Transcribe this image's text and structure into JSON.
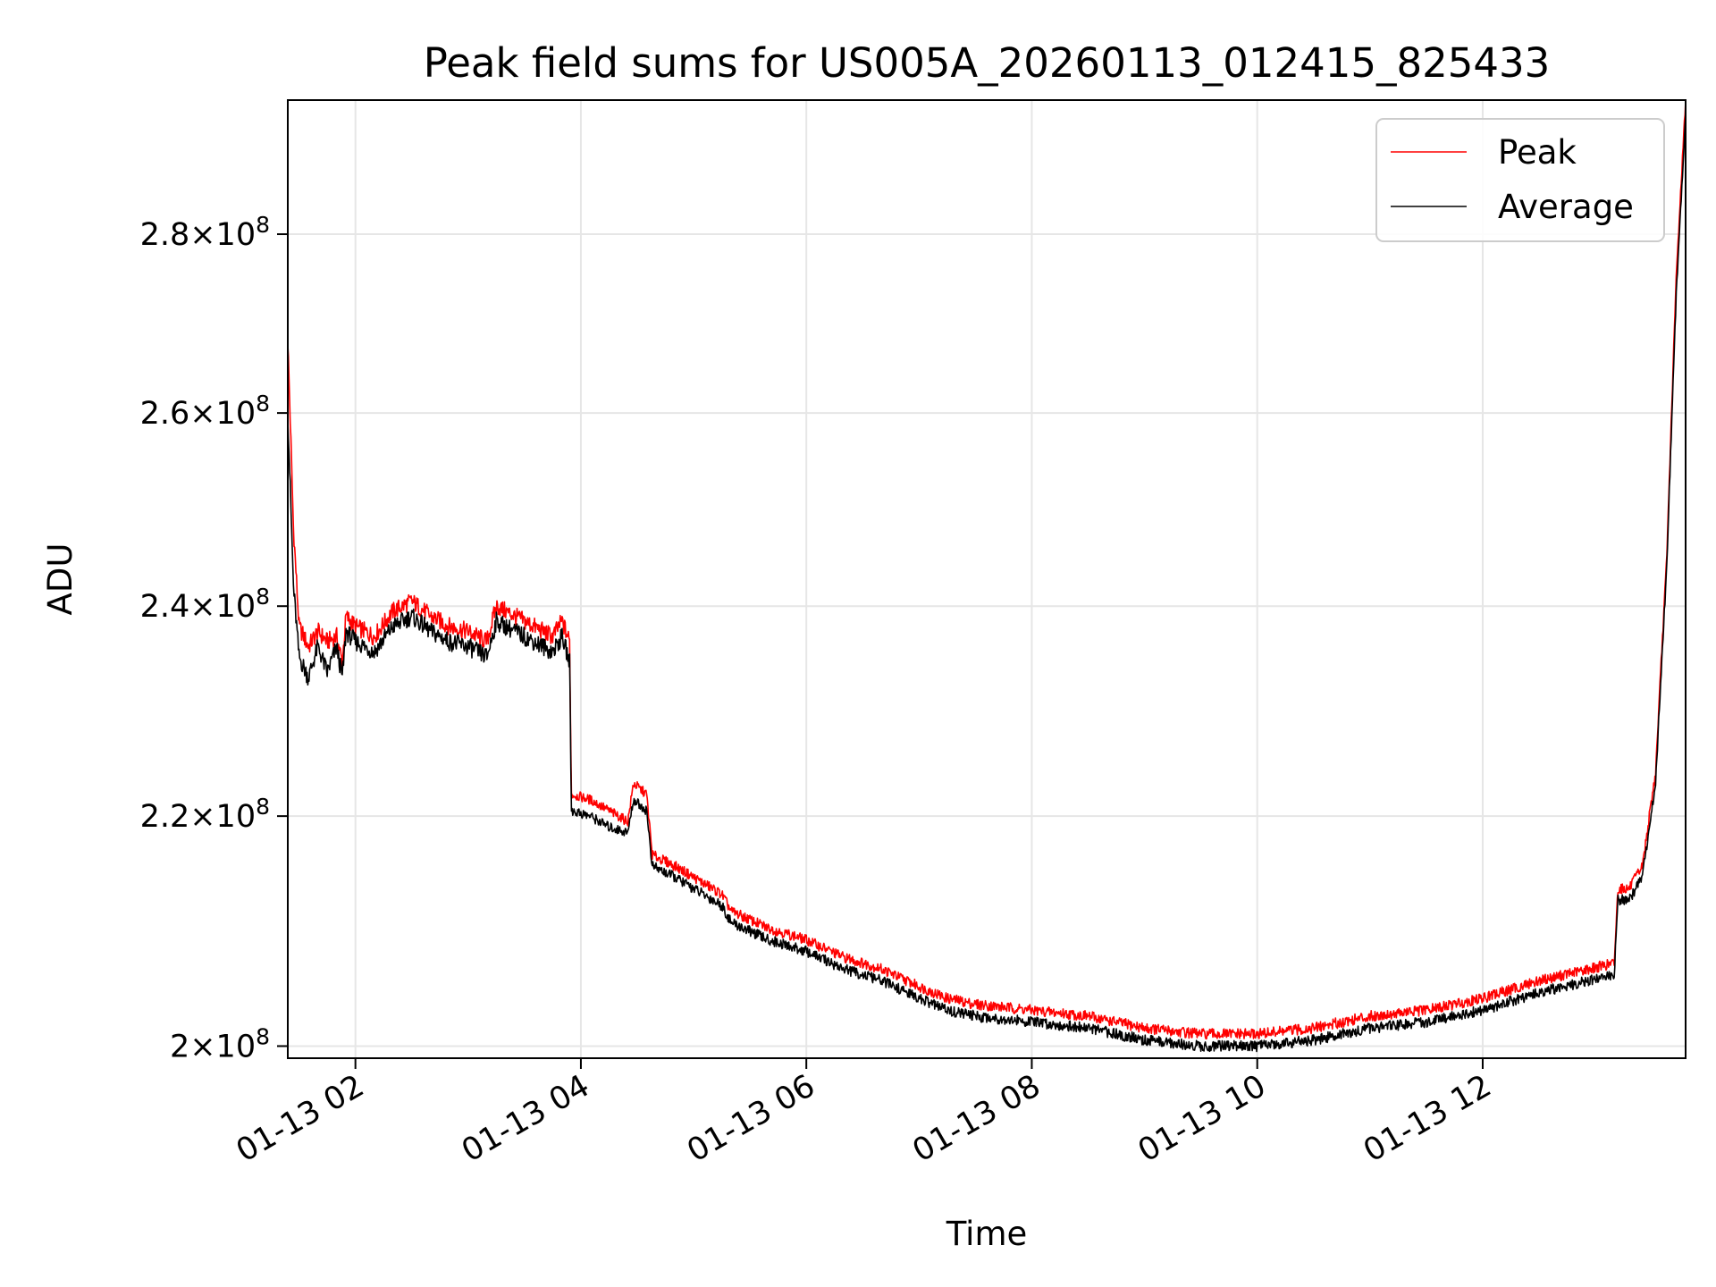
{
  "chart_data": {
    "type": "line",
    "title": "Peak field sums for US005A_20260113_012415_825433",
    "xlabel": "Time",
    "ylabel": "ADU",
    "x_ticks": [
      "01-13 02",
      "01-13 04",
      "01-13 06",
      "01-13 08",
      "01-13 10",
      "01-13 12"
    ],
    "y_ticks": [
      {
        "value": 200000000,
        "mantissa": "2",
        "exponent": "8"
      },
      {
        "value": 220000000,
        "mantissa": "2.2",
        "exponent": "8"
      },
      {
        "value": 240000000,
        "mantissa": "2.4",
        "exponent": "8"
      },
      {
        "value": 260000000,
        "mantissa": "2.6",
        "exponent": "8"
      },
      {
        "value": 280000000,
        "mantissa": "2.8",
        "exponent": "8"
      }
    ],
    "x_range": [
      "2026-01-13 01:24",
      "2026-01-13 13:48"
    ],
    "y_range": [
      199000000,
      296000000
    ],
    "y_scale": "log",
    "grid": true,
    "legend_position": "top-right",
    "series": [
      {
        "name": "Peak",
        "color": "#ff0000",
        "points": [
          [
            "2026-01-13 01:24",
            268000000
          ],
          [
            "2026-01-13 01:27",
            248000000
          ],
          [
            "2026-01-13 01:30",
            238000000
          ],
          [
            "2026-01-13 01:35",
            236000000
          ],
          [
            "2026-01-13 01:40",
            237500000
          ],
          [
            "2026-01-13 01:45",
            236500000
          ],
          [
            "2026-01-13 01:50",
            237000000
          ],
          [
            "2026-01-13 01:53",
            234500000
          ],
          [
            "2026-01-13 01:55",
            239000000
          ],
          [
            "2026-01-13 02:00",
            238000000
          ],
          [
            "2026-01-13 02:10",
            237000000
          ],
          [
            "2026-01-13 02:20",
            239500000
          ],
          [
            "2026-01-13 02:30",
            240500000
          ],
          [
            "2026-01-13 02:40",
            239000000
          ],
          [
            "2026-01-13 02:50",
            238000000
          ],
          [
            "2026-01-13 03:00",
            237500000
          ],
          [
            "2026-01-13 03:10",
            236500000
          ],
          [
            "2026-01-13 03:15",
            240000000
          ],
          [
            "2026-01-13 03:25",
            239000000
          ],
          [
            "2026-01-13 03:35",
            238000000
          ],
          [
            "2026-01-13 03:45",
            237000000
          ],
          [
            "2026-01-13 03:50",
            238500000
          ],
          [
            "2026-01-13 03:54",
            236500000
          ],
          [
            "2026-01-13 03:55",
            222000000
          ],
          [
            "2026-01-13 04:05",
            221500000
          ],
          [
            "2026-01-13 04:15",
            220500000
          ],
          [
            "2026-01-13 04:25",
            219500000
          ],
          [
            "2026-01-13 04:28",
            223000000
          ],
          [
            "2026-01-13 04:35",
            222000000
          ],
          [
            "2026-01-13 04:38",
            216500000
          ],
          [
            "2026-01-13 04:50",
            215500000
          ],
          [
            "2026-01-13 05:00",
            214500000
          ],
          [
            "2026-01-13 05:15",
            213000000
          ],
          [
            "2026-01-13 05:20",
            211500000
          ],
          [
            "2026-01-13 05:40",
            210000000
          ],
          [
            "2026-01-13 06:00",
            209000000
          ],
          [
            "2026-01-13 06:20",
            207500000
          ],
          [
            "2026-01-13 06:40",
            206500000
          ],
          [
            "2026-01-13 07:00",
            205000000
          ],
          [
            "2026-01-13 07:15",
            204000000
          ],
          [
            "2026-01-13 07:30",
            203500000
          ],
          [
            "2026-01-13 08:00",
            203000000
          ],
          [
            "2026-01-13 08:30",
            202500000
          ],
          [
            "2026-01-13 09:00",
            201500000
          ],
          [
            "2026-01-13 09:30",
            201000000
          ],
          [
            "2026-01-13 10:00",
            201000000
          ],
          [
            "2026-01-13 10:30",
            201500000
          ],
          [
            "2026-01-13 11:00",
            202500000
          ],
          [
            "2026-01-13 11:30",
            203000000
          ],
          [
            "2026-01-13 12:00",
            204000000
          ],
          [
            "2026-01-13 12:30",
            205500000
          ],
          [
            "2026-01-13 13:10",
            207000000
          ],
          [
            "2026-01-13 13:12",
            213500000
          ],
          [
            "2026-01-13 13:18",
            213500000
          ],
          [
            "2026-01-13 13:25",
            215500000
          ],
          [
            "2026-01-13 13:32",
            224000000
          ],
          [
            "2026-01-13 13:38",
            245000000
          ],
          [
            "2026-01-13 13:43",
            275000000
          ],
          [
            "2026-01-13 13:48",
            296000000
          ]
        ]
      },
      {
        "name": "Average",
        "color": "#000000",
        "points": [
          [
            "2026-01-13 01:24",
            260000000
          ],
          [
            "2026-01-13 01:27",
            242000000
          ],
          [
            "2026-01-13 01:30",
            235000000
          ],
          [
            "2026-01-13 01:35",
            233000000
          ],
          [
            "2026-01-13 01:40",
            236000000
          ],
          [
            "2026-01-13 01:45",
            233500000
          ],
          [
            "2026-01-13 01:50",
            236000000
          ],
          [
            "2026-01-13 01:53",
            233000000
          ],
          [
            "2026-01-13 01:55",
            237500000
          ],
          [
            "2026-01-13 02:00",
            236500000
          ],
          [
            "2026-01-13 02:10",
            235500000
          ],
          [
            "2026-01-13 02:20",
            238000000
          ],
          [
            "2026-01-13 02:30",
            239000000
          ],
          [
            "2026-01-13 02:40",
            237500000
          ],
          [
            "2026-01-13 02:50",
            236500000
          ],
          [
            "2026-01-13 03:00",
            236000000
          ],
          [
            "2026-01-13 03:10",
            235000000
          ],
          [
            "2026-01-13 03:15",
            238500000
          ],
          [
            "2026-01-13 03:25",
            237500000
          ],
          [
            "2026-01-13 03:35",
            236500000
          ],
          [
            "2026-01-13 03:45",
            235500000
          ],
          [
            "2026-01-13 03:50",
            237000000
          ],
          [
            "2026-01-13 03:54",
            234500000
          ],
          [
            "2026-01-13 03:55",
            220500000
          ],
          [
            "2026-01-13 04:05",
            220000000
          ],
          [
            "2026-01-13 04:15",
            219000000
          ],
          [
            "2026-01-13 04:25",
            218500000
          ],
          [
            "2026-01-13 04:28",
            221500000
          ],
          [
            "2026-01-13 04:35",
            220500000
          ],
          [
            "2026-01-13 04:38",
            215500000
          ],
          [
            "2026-01-13 04:50",
            214500000
          ],
          [
            "2026-01-13 05:00",
            213500000
          ],
          [
            "2026-01-13 05:15",
            212000000
          ],
          [
            "2026-01-13 05:20",
            210500000
          ],
          [
            "2026-01-13 05:40",
            209000000
          ],
          [
            "2026-01-13 06:00",
            208000000
          ],
          [
            "2026-01-13 06:20",
            206500000
          ],
          [
            "2026-01-13 06:40",
            205500000
          ],
          [
            "2026-01-13 07:00",
            204000000
          ],
          [
            "2026-01-13 07:15",
            203000000
          ],
          [
            "2026-01-13 07:30",
            202500000
          ],
          [
            "2026-01-13 08:00",
            202000000
          ],
          [
            "2026-01-13 08:30",
            201500000
          ],
          [
            "2026-01-13 09:00",
            200500000
          ],
          [
            "2026-01-13 09:30",
            200000000
          ],
          [
            "2026-01-13 10:00",
            200000000
          ],
          [
            "2026-01-13 10:30",
            200500000
          ],
          [
            "2026-01-13 11:00",
            201500000
          ],
          [
            "2026-01-13 11:30",
            202000000
          ],
          [
            "2026-01-13 12:00",
            203000000
          ],
          [
            "2026-01-13 12:30",
            204500000
          ],
          [
            "2026-01-13 13:10",
            206000000
          ],
          [
            "2026-01-13 13:12",
            212500000
          ],
          [
            "2026-01-13 13:18",
            212500000
          ],
          [
            "2026-01-13 13:25",
            214500000
          ],
          [
            "2026-01-13 13:32",
            223000000
          ],
          [
            "2026-01-13 13:38",
            244000000
          ],
          [
            "2026-01-13 13:43",
            273000000
          ],
          [
            "2026-01-13 13:48",
            294000000
          ]
        ]
      }
    ]
  }
}
